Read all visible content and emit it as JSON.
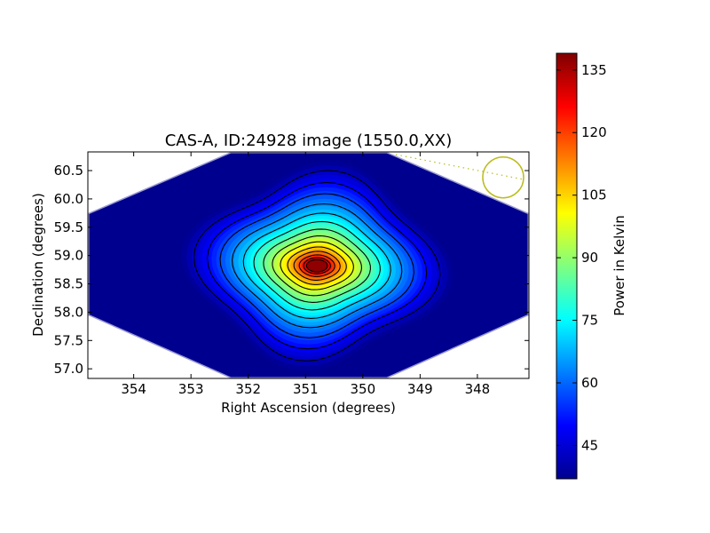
{
  "chart_data": {
    "type": "heatmap",
    "title": "CAS-A, ID:24928 image (1550.0,XX)",
    "xlabel": "Right Ascension (degrees)",
    "ylabel": "Declination (degrees)",
    "xlim": [
      354.8,
      347.1
    ],
    "ylim": [
      56.83,
      60.83
    ],
    "x_ticks": [
      354,
      353,
      352,
      351,
      350,
      349,
      348
    ],
    "y_ticks": [
      57.0,
      57.5,
      58.0,
      58.5,
      59.0,
      59.5,
      60.0,
      60.5
    ],
    "colorbar": {
      "label": "Power in Kelvin",
      "range": [
        37,
        139
      ],
      "ticks": [
        45,
        60,
        75,
        90,
        105,
        120,
        135
      ],
      "colormap": "jet"
    },
    "source": {
      "ra": 350.8,
      "dec": 58.82,
      "peak_kelvin": 139
    },
    "background_kelvin": 37,
    "contour_levels_kelvin": [
      42,
      49,
      56,
      63,
      70,
      77,
      84,
      91,
      98,
      105,
      112,
      119,
      126,
      133
    ],
    "beam_circle": {
      "ra": 347.55,
      "dec": 60.38
    }
  },
  "colors": {
    "contour": "#000000",
    "beam": "#bcbc1e",
    "background": "#00008f"
  }
}
